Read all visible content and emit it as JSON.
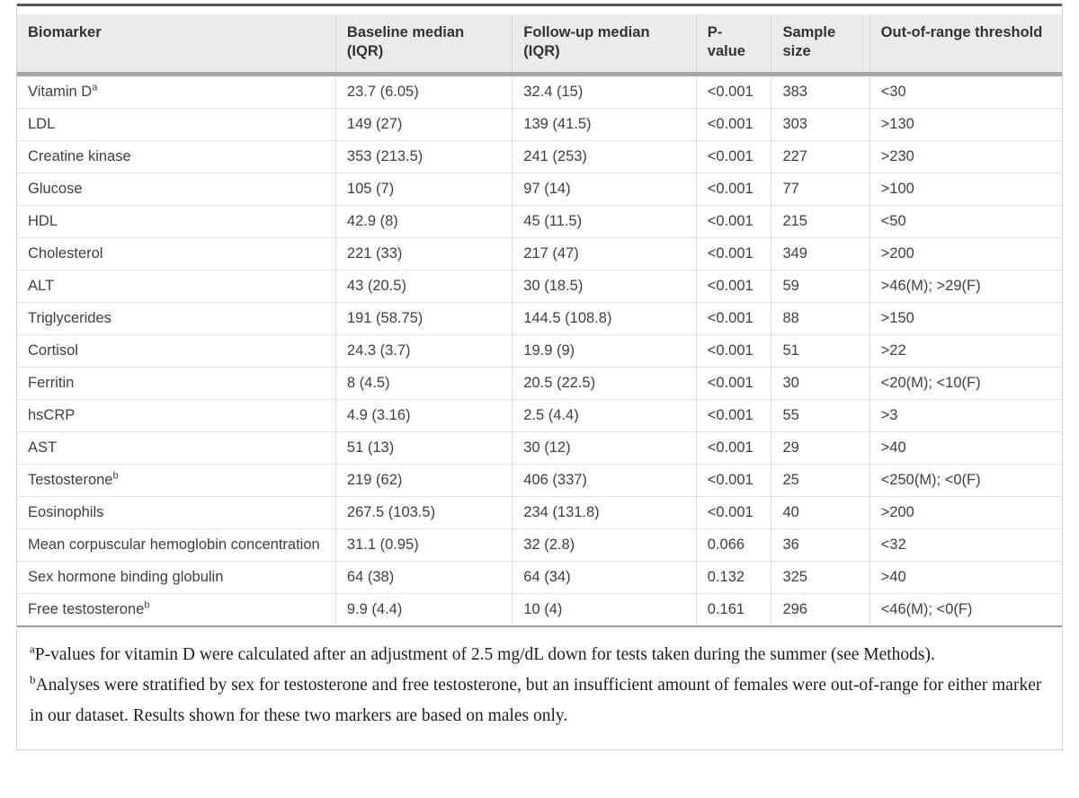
{
  "table": {
    "columns": [
      "Biomarker",
      "Baseline median (IQR)",
      "Follow-up median (IQR)",
      "P-value",
      "Sample size",
      "Out-of-range threshold"
    ],
    "rows": [
      {
        "biomarker": "Vitamin D",
        "sup": "a",
        "baseline": "23.7 (6.05)",
        "followup": "32.4 (15)",
        "p_value": "<0.001",
        "sample_size": "383",
        "threshold": "<30"
      },
      {
        "biomarker": "LDL",
        "sup": "",
        "baseline": "149 (27)",
        "followup": "139 (41.5)",
        "p_value": "<0.001",
        "sample_size": "303",
        "threshold": ">130"
      },
      {
        "biomarker": "Creatine kinase",
        "sup": "",
        "baseline": "353 (213.5)",
        "followup": "241 (253)",
        "p_value": "<0.001",
        "sample_size": "227",
        "threshold": ">230"
      },
      {
        "biomarker": "Glucose",
        "sup": "",
        "baseline": "105 (7)",
        "followup": "97 (14)",
        "p_value": "<0.001",
        "sample_size": "77",
        "threshold": ">100"
      },
      {
        "biomarker": "HDL",
        "sup": "",
        "baseline": "42.9 (8)",
        "followup": "45 (11.5)",
        "p_value": "<0.001",
        "sample_size": "215",
        "threshold": "<50"
      },
      {
        "biomarker": "Cholesterol",
        "sup": "",
        "baseline": "221 (33)",
        "followup": "217 (47)",
        "p_value": "<0.001",
        "sample_size": "349",
        "threshold": ">200"
      },
      {
        "biomarker": "ALT",
        "sup": "",
        "baseline": "43 (20.5)",
        "followup": "30 (18.5)",
        "p_value": "<0.001",
        "sample_size": "59",
        "threshold": ">46(M); >29(F)"
      },
      {
        "biomarker": "Triglycerides",
        "sup": "",
        "baseline": "191 (58.75)",
        "followup": "144.5 (108.8)",
        "p_value": "<0.001",
        "sample_size": "88",
        "threshold": ">150"
      },
      {
        "biomarker": "Cortisol",
        "sup": "",
        "baseline": "24.3 (3.7)",
        "followup": "19.9 (9)",
        "p_value": "<0.001",
        "sample_size": "51",
        "threshold": ">22"
      },
      {
        "biomarker": "Ferritin",
        "sup": "",
        "baseline": "8 (4.5)",
        "followup": "20.5 (22.5)",
        "p_value": "<0.001",
        "sample_size": "30",
        "threshold": "<20(M); <10(F)"
      },
      {
        "biomarker": "hsCRP",
        "sup": "",
        "baseline": "4.9 (3.16)",
        "followup": "2.5 (4.4)",
        "p_value": "<0.001",
        "sample_size": "55",
        "threshold": ">3"
      },
      {
        "biomarker": "AST",
        "sup": "",
        "baseline": "51 (13)",
        "followup": "30 (12)",
        "p_value": "<0.001",
        "sample_size": "29",
        "threshold": ">40"
      },
      {
        "biomarker": "Testosterone",
        "sup": "b",
        "baseline": "219 (62)",
        "followup": "406 (337)",
        "p_value": "<0.001",
        "sample_size": "25",
        "threshold": "<250(M); <0(F)"
      },
      {
        "biomarker": "Eosinophils",
        "sup": "",
        "baseline": "267.5 (103.5)",
        "followup": "234 (131.8)",
        "p_value": "<0.001",
        "sample_size": "40",
        "threshold": ">200"
      },
      {
        "biomarker": "Mean corpuscular hemoglobin concentration",
        "sup": "",
        "baseline": "31.1 (0.95)",
        "followup": "32 (2.8)",
        "p_value": "0.066",
        "sample_size": "36",
        "threshold": "<32"
      },
      {
        "biomarker": "Sex hormone binding globulin",
        "sup": "",
        "baseline": "64 (38)",
        "followup": "64 (34)",
        "p_value": "0.132",
        "sample_size": "325",
        "threshold": ">40"
      },
      {
        "biomarker": "Free testosterone",
        "sup": "b",
        "baseline": "9.9 (4.4)",
        "followup": "10 (4)",
        "p_value": "0.161",
        "sample_size": "296",
        "threshold": "<46(M); <0(F)"
      }
    ]
  },
  "footnotes": [
    {
      "marker": "a",
      "text": "P-values for vitamin D were calculated after an adjustment of 2.5 mg/dL down for tests taken during the summer (see Methods)."
    },
    {
      "marker": "b",
      "text": "Analyses were stratified by sex for testosterone and free testosterone, but an insufficient amount of females were out-of-range for either marker in our dataset. Results shown for these two markers are based on males only."
    }
  ],
  "colors": {
    "header_background": "#ebebeb",
    "header_rule": "#a7a7a7",
    "top_rule": "#58585b",
    "row_divider": "#e2e2e2",
    "outer_border": "#d2d2d2",
    "header_text": "#333333",
    "cell_text": "#404040",
    "footnote_text": "#1f1f1f"
  }
}
